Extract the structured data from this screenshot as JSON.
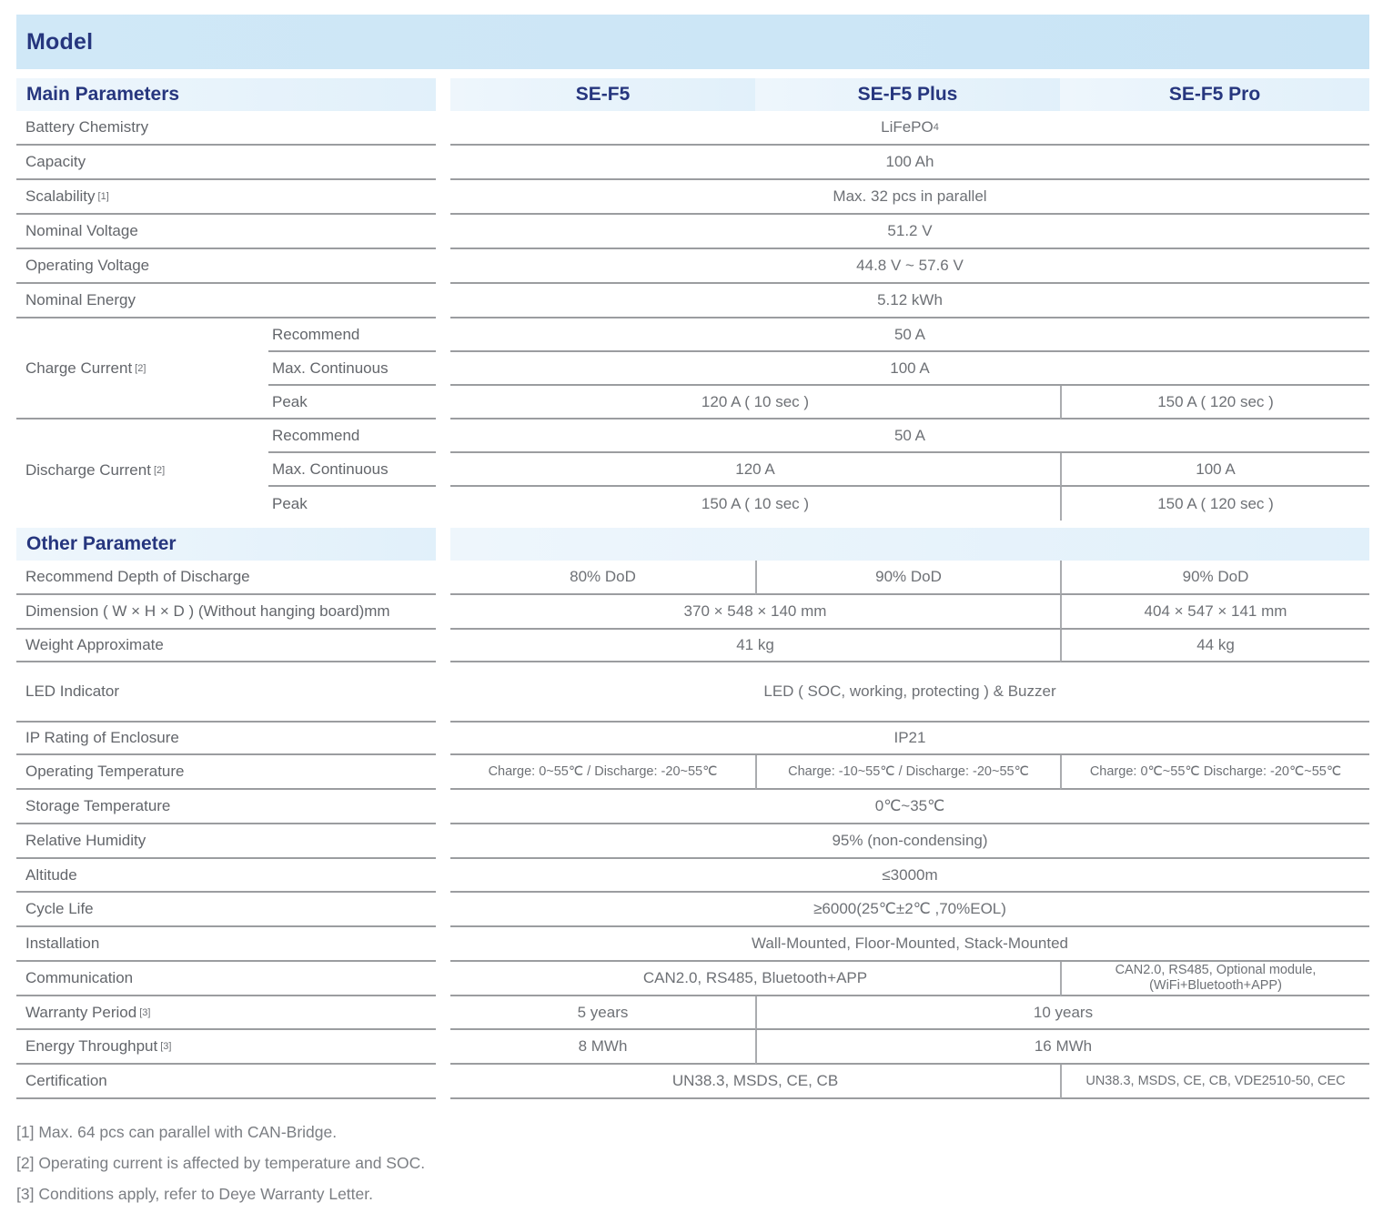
{
  "colors": {
    "accent_navy": "#26367e",
    "model_band_blue": "#cde6f6",
    "section_band_blue": "#e8f4fb",
    "rule_gray": "#9b9da0",
    "text_gray": "#6e7176"
  },
  "model_section": {
    "title": "Model"
  },
  "header": {
    "left": "Main Parameters",
    "columns": [
      "SE-F5",
      "SE-F5 Plus",
      "SE-F5 Pro"
    ]
  },
  "main": {
    "battery_chemistry": {
      "label": "Battery Chemistry",
      "value": "LiFePO",
      "value_sub": "4"
    },
    "capacity": {
      "label": "Capacity",
      "value": "100 Ah"
    },
    "scalability": {
      "label": "Scalability",
      "sup": "[1]",
      "value": "Max. 32 pcs in parallel"
    },
    "nominal_voltage": {
      "label": "Nominal Voltage",
      "value": "51.2 V"
    },
    "operating_voltage": {
      "label": "Operating Voltage",
      "value": "44.8 V ~ 57.6 V"
    },
    "nominal_energy": {
      "label": "Nominal Energy",
      "value": "5.12 kWh"
    },
    "charge_current": {
      "label": "Charge Current",
      "sup": "[2]",
      "recommend": {
        "label": "Recommend",
        "value": "50 A"
      },
      "max_continuous": {
        "label": "Max. Continuous",
        "value": "100 A"
      },
      "peak": {
        "label": "Peak",
        "value_f5_plus": "120 A ( 10 sec )",
        "value_pro": "150 A ( 120 sec )"
      }
    },
    "discharge_current": {
      "label": "Discharge Current",
      "sup": "[2]",
      "recommend": {
        "label": "Recommend",
        "value": "50 A"
      },
      "max_continuous": {
        "label": "Max. Continuous",
        "value_f5_plus": "120 A",
        "value_pro": "100 A"
      },
      "peak": {
        "label": "Peak",
        "value_f5_plus": "150 A ( 10 sec )",
        "value_pro": "150 A ( 120 sec )"
      }
    }
  },
  "other_section": {
    "title": "Other Parameter"
  },
  "other": {
    "dod": {
      "label": "Recommend Depth of Discharge",
      "values": [
        "80% DoD",
        "90% DoD",
        "90% DoD"
      ]
    },
    "dimension": {
      "label": "Dimension ( W × H × D ) (Without hanging board)mm",
      "value_f5_plus": "370 × 548 × 140 mm",
      "value_pro": "404 × 547 × 141 mm"
    },
    "weight": {
      "label": "Weight Approximate",
      "value_f5_plus": "41 kg",
      "value_pro": "44 kg"
    },
    "led": {
      "label": "LED Indicator",
      "value": "LED ( SOC, working, protecting ) & Buzzer"
    },
    "ip_rating": {
      "label": "IP Rating of Enclosure",
      "value": "IP21"
    },
    "operating_temperature": {
      "label": "Operating Temperature",
      "values": [
        "Charge: 0~55℃ / Discharge: -20~55℃",
        "Charge: -10~55℃ / Discharge: -20~55℃",
        "Charge: 0℃~55℃  Discharge: -20℃~55℃"
      ]
    },
    "storage_temperature": {
      "label": "Storage Temperature",
      "value": "0℃~35℃"
    },
    "relative_humidity": {
      "label": "Relative Humidity",
      "value": "95% (non-condensing)"
    },
    "altitude": {
      "label": "Altitude",
      "value": "≤3000m"
    },
    "cycle_life": {
      "label": "Cycle Life",
      "value": "≥6000(25℃±2℃ ,70%EOL)"
    },
    "installation": {
      "label": "Installation",
      "value": "Wall-Mounted, Floor-Mounted, Stack-Mounted"
    },
    "communication": {
      "label": "Communication",
      "value_f5_plus": "CAN2.0, RS485, Bluetooth+APP",
      "value_pro_line1": "CAN2.0, RS485, Optional module,",
      "value_pro_line2": "(WiFi+Bluetooth+APP)"
    },
    "warranty": {
      "label": "Warranty Period",
      "sup": "[3]",
      "value_f5": "5 years",
      "value_plus_pro": "10 years"
    },
    "energy_throughput": {
      "label": "Energy Throughput",
      "sup": "[3]",
      "value_f5": "8 MWh",
      "value_plus_pro": "16 MWh"
    },
    "certification": {
      "label": "Certification",
      "value_f5_plus": "UN38.3, MSDS, CE, CB",
      "value_pro": "UN38.3, MSDS, CE, CB, VDE2510-50,  CEC"
    }
  },
  "footnotes": [
    "[1] Max. 64 pcs can parallel with CAN-Bridge.",
    "[2] Operating current is affected by temperature and SOC.",
    "[3] Conditions apply, refer to Deye Warranty Letter."
  ]
}
